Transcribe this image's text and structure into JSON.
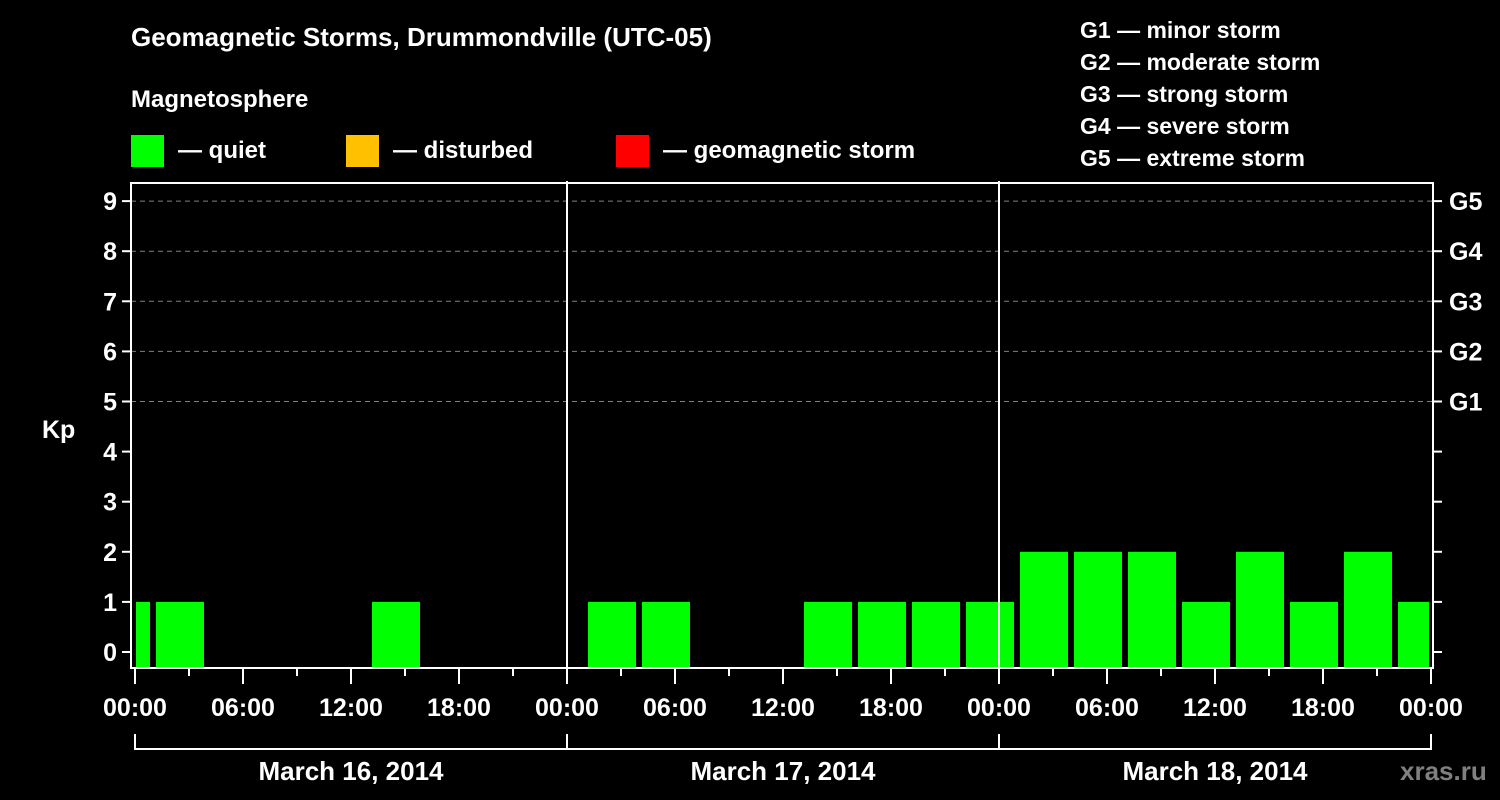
{
  "header": {
    "title": "Geomagnetic Storms, Drummondville (UTC-05)",
    "subtitle": "Magnetosphere"
  },
  "legend": [
    {
      "label": "— quiet",
      "color": "#00ff00"
    },
    {
      "label": "— disturbed",
      "color": "#ffc000"
    },
    {
      "label": "— geomagnetic storm",
      "color": "#ff0000"
    }
  ],
  "storm_scale": [
    "G1 — minor storm",
    "G2 — moderate storm",
    "G3 — strong storm",
    "G4 — severe storm",
    "G5 — extreme storm"
  ],
  "watermark": "xras.ru",
  "chart_data": {
    "type": "bar",
    "title": "Geomagnetic Storms, Drummondville (UTC-05)",
    "subtitle": "Magnetosphere",
    "xlabel": "",
    "ylabel": "Kp",
    "ylim": [
      0,
      9
    ],
    "yticks": [
      0,
      1,
      2,
      3,
      4,
      5,
      6,
      7,
      8,
      9
    ],
    "right_axis_labels": [
      {
        "kp": 5,
        "label": "G1"
      },
      {
        "kp": 6,
        "label": "G2"
      },
      {
        "kp": 7,
        "label": "G3"
      },
      {
        "kp": 8,
        "label": "G4"
      },
      {
        "kp": 9,
        "label": "G5"
      }
    ],
    "xtick_labels": [
      "00:00",
      "06:00",
      "12:00",
      "18:00",
      "00:00",
      "06:00",
      "12:00",
      "18:00",
      "00:00",
      "06:00",
      "12:00",
      "18:00",
      "00:00"
    ],
    "days": [
      "March 16, 2014",
      "March 17, 2014",
      "March 18, 2014"
    ],
    "grid": "dashed horizontal at Kp 5-9",
    "legend_position": "top",
    "bar_color": "#00ff00",
    "bars_note": "3-hour Kp intervals in local time (UTC-05); start_hour measured from March 16 00:00",
    "bars": [
      {
        "start_hour": 0,
        "end_hour": 1,
        "kp": 1,
        "level": "quiet"
      },
      {
        "start_hour": 1,
        "end_hour": 4,
        "kp": 1,
        "level": "quiet"
      },
      {
        "start_hour": 13,
        "end_hour": 16,
        "kp": 1,
        "level": "quiet"
      },
      {
        "start_hour": 25,
        "end_hour": 28,
        "kp": 1,
        "level": "quiet"
      },
      {
        "start_hour": 28,
        "end_hour": 31,
        "kp": 1,
        "level": "quiet"
      },
      {
        "start_hour": 37,
        "end_hour": 40,
        "kp": 1,
        "level": "quiet"
      },
      {
        "start_hour": 40,
        "end_hour": 43,
        "kp": 1,
        "level": "quiet"
      },
      {
        "start_hour": 43,
        "end_hour": 46,
        "kp": 1,
        "level": "quiet"
      },
      {
        "start_hour": 46,
        "end_hour": 49,
        "kp": 1,
        "level": "quiet"
      },
      {
        "start_hour": 49,
        "end_hour": 52,
        "kp": 2,
        "level": "quiet"
      },
      {
        "start_hour": 52,
        "end_hour": 55,
        "kp": 2,
        "level": "quiet"
      },
      {
        "start_hour": 55,
        "end_hour": 58,
        "kp": 2,
        "level": "quiet"
      },
      {
        "start_hour": 58,
        "end_hour": 61,
        "kp": 1,
        "level": "quiet"
      },
      {
        "start_hour": 61,
        "end_hour": 64,
        "kp": 2,
        "level": "quiet"
      },
      {
        "start_hour": 64,
        "end_hour": 67,
        "kp": 1,
        "level": "quiet"
      },
      {
        "start_hour": 67,
        "end_hour": 70,
        "kp": 2,
        "level": "quiet"
      },
      {
        "start_hour": 70,
        "end_hour": 72,
        "kp": 1,
        "level": "quiet"
      }
    ]
  }
}
